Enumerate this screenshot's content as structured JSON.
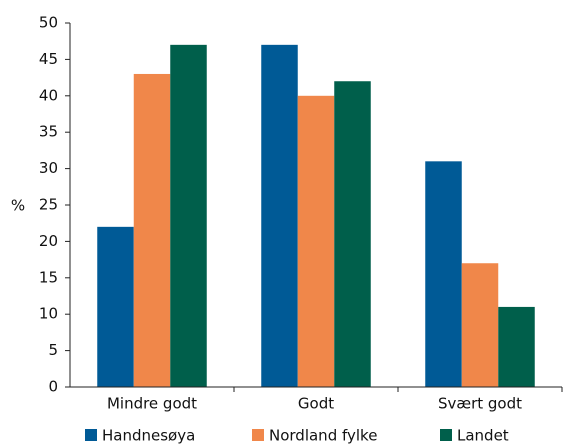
{
  "chart_data": {
    "type": "bar",
    "y_label": "%",
    "categories": [
      "Mindre godt",
      "Godt",
      "Svært godt"
    ],
    "series": [
      {
        "name": "Handnesøya",
        "color": "#005a96",
        "values": [
          22,
          47,
          31
        ]
      },
      {
        "name": "Nordland fylke",
        "color": "#f0874a",
        "values": [
          43,
          40,
          17
        ]
      },
      {
        "name": "Landet",
        "color": "#005f4b",
        "values": [
          47,
          42,
          11
        ]
      }
    ],
    "ylim": [
      0,
      50
    ],
    "yticks": [
      0,
      5,
      10,
      15,
      20,
      25,
      30,
      35,
      40,
      45,
      50
    ],
    "legend": "bottom"
  }
}
